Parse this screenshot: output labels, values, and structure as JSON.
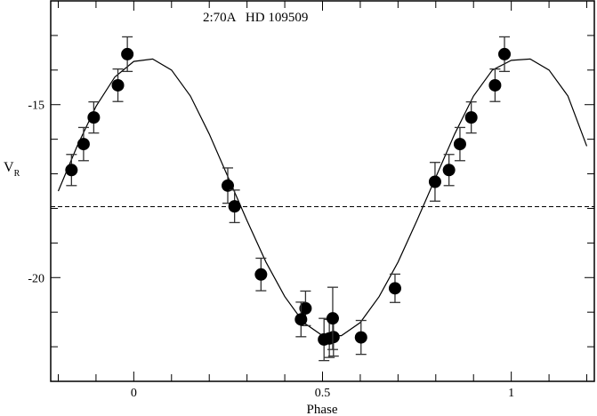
{
  "chart_data": {
    "type": "scatter",
    "title": "2:70A   HD 109509",
    "xlabel": "Phase",
    "ylabel": "V",
    "ylabel_sub": "R",
    "xlim": [
      -0.22,
      1.22
    ],
    "ylim": [
      -23,
      -12
    ],
    "y_inverted_sense": "more negative downward",
    "x_major_ticks": [
      0,
      0.5,
      1
    ],
    "x_tick_labels": [
      "0",
      "0.5",
      "1"
    ],
    "x_minor_step": 0.1,
    "y_major_ticks": [
      -15,
      -20
    ],
    "y_tick_labels": [
      "-15",
      "-20"
    ],
    "y_minor_step": 1,
    "grid": false,
    "mean_line": {
      "y": -17.95,
      "style": "dashed"
    },
    "points": [
      {
        "x": -0.165,
        "y": -16.89,
        "err": 0.45
      },
      {
        "x": -0.133,
        "y": -16.14,
        "err": 0.48
      },
      {
        "x": -0.106,
        "y": -15.37,
        "err": 0.45
      },
      {
        "x": -0.042,
        "y": -14.44,
        "err": 0.47
      },
      {
        "x": -0.017,
        "y": -13.54,
        "err": 0.5
      },
      {
        "x": 0.249,
        "y": -17.34,
        "err": 0.51
      },
      {
        "x": 0.267,
        "y": -17.94,
        "err": 0.47
      },
      {
        "x": 0.337,
        "y": -19.91,
        "err": 0.47
      },
      {
        "x": 0.455,
        "y": -20.89,
        "err": 0.5
      },
      {
        "x": 0.443,
        "y": -21.21,
        "err": 0.5
      },
      {
        "x": 0.504,
        "y": -21.79,
        "err": 0.61
      },
      {
        "x": 0.518,
        "y": -21.76,
        "err": 0.55
      },
      {
        "x": 0.529,
        "y": -21.72,
        "err": 0.55
      },
      {
        "x": 0.527,
        "y": -21.18,
        "err": 0.9
      },
      {
        "x": 0.602,
        "y": -21.73,
        "err": 0.49
      },
      {
        "x": 0.692,
        "y": -20.31,
        "err": 0.41
      },
      {
        "x": 0.798,
        "y": -17.23,
        "err": 0.56
      },
      {
        "x": 0.835,
        "y": -16.89,
        "err": 0.45
      },
      {
        "x": 0.864,
        "y": -16.14,
        "err": 0.48
      },
      {
        "x": 0.894,
        "y": -15.37,
        "err": 0.45
      },
      {
        "x": 0.957,
        "y": -14.44,
        "err": 0.47
      },
      {
        "x": 0.982,
        "y": -13.54,
        "err": 0.5
      }
    ],
    "fit_curve": {
      "x": [
        -0.2,
        -0.15,
        -0.1,
        -0.05,
        0,
        0.05,
        0.1,
        0.15,
        0.2,
        0.25,
        0.3,
        0.35,
        0.4,
        0.45,
        0.5,
        0.55,
        0.6,
        0.65,
        0.7,
        0.75,
        0.8,
        0.85,
        0.9,
        0.95,
        1.0,
        1.05,
        1.1,
        1.15,
        1.2
      ],
      "y": [
        -17.5,
        -16.2,
        -15.05,
        -14.2,
        -13.75,
        -13.68,
        -14.0,
        -14.75,
        -15.85,
        -17.1,
        -18.35,
        -19.55,
        -20.55,
        -21.3,
        -21.68,
        -21.68,
        -21.3,
        -20.55,
        -19.55,
        -18.35,
        -17.1,
        -15.85,
        -14.75,
        -14.0,
        -13.72,
        -13.68,
        -14.0,
        -14.75,
        -16.2
      ]
    }
  }
}
